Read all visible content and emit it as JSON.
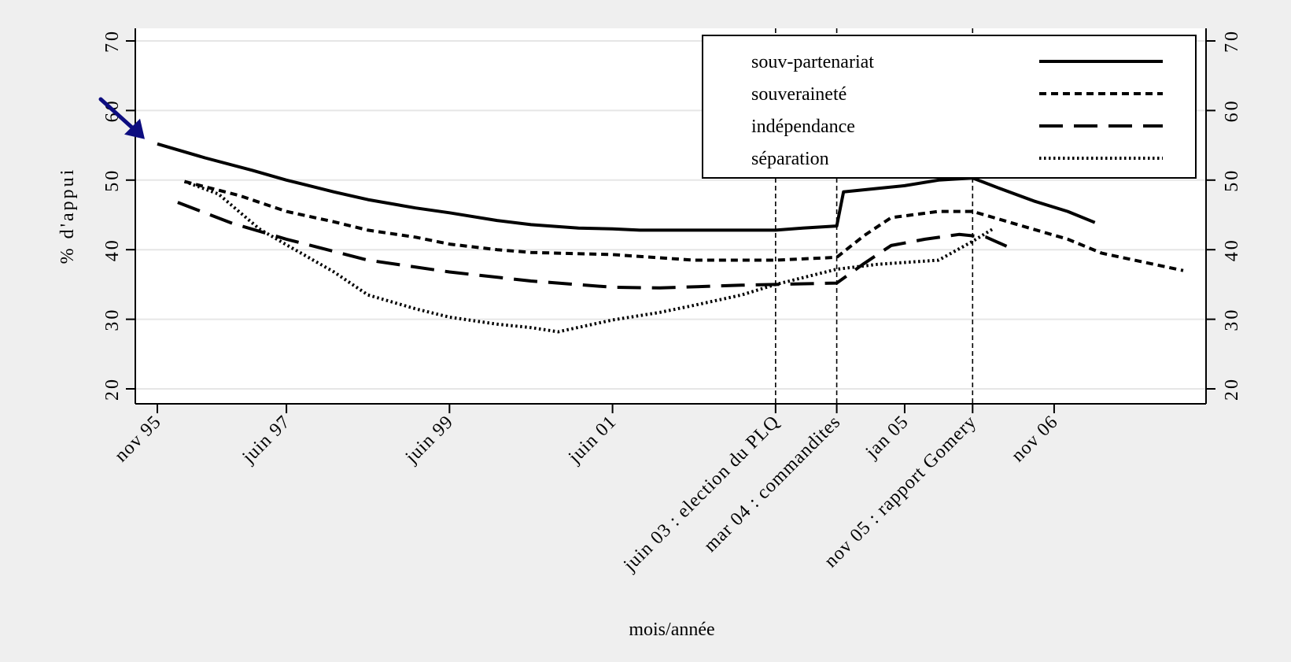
{
  "chart_data": {
    "type": "line",
    "xlabel": "mois/année",
    "ylabel": "% d'appui",
    "ylim": [
      20,
      70
    ],
    "yticks": [
      20,
      30,
      40,
      50,
      60,
      70
    ],
    "secondary_y_axis": true,
    "grid": "horizontal",
    "legend_position": "top-right",
    "x_unit": "month",
    "xlim": [
      "1995-11",
      "2008-06"
    ],
    "x_ticks": [
      {
        "x": "1995-11",
        "label": "nov 95",
        "event": false
      },
      {
        "x": "1997-06",
        "label": "juin 97",
        "event": false
      },
      {
        "x": "1999-06",
        "label": "juin 99",
        "event": false
      },
      {
        "x": "2001-06",
        "label": "juin 01",
        "event": false
      },
      {
        "x": "2003-06",
        "label": "juin 03 : election du PLQ",
        "event": true
      },
      {
        "x": "2004-03",
        "label": "mar 04 : commandites",
        "event": true
      },
      {
        "x": "2005-01",
        "label": "jan 05",
        "event": false
      },
      {
        "x": "2005-11",
        "label": "nov 05 : rapport Gomery",
        "event": true
      },
      {
        "x": "2006-11",
        "label": "nov 06",
        "event": false
      }
    ],
    "annotation_arrow": {
      "points_to": {
        "x": "1995-11",
        "y": 56
      },
      "color": "#0d0d80"
    },
    "series": [
      {
        "name": "souv-partenariat",
        "style": "solid",
        "points": [
          [
            "1995-11",
            55.2
          ],
          [
            "1996-06",
            53.2
          ],
          [
            "1997-01",
            51.4
          ],
          [
            "1997-06",
            50.0
          ],
          [
            "1998-01",
            48.3
          ],
          [
            "1998-06",
            47.2
          ],
          [
            "1999-01",
            46.0
          ],
          [
            "1999-06",
            45.3
          ],
          [
            "2000-01",
            44.2
          ],
          [
            "2000-06",
            43.6
          ],
          [
            "2001-01",
            43.1
          ],
          [
            "2001-06",
            43.0
          ],
          [
            "2001-10",
            42.8
          ],
          [
            "2002-06",
            42.8
          ],
          [
            "2003-06",
            42.8
          ],
          [
            "2003-10",
            43.1
          ],
          [
            "2004-03",
            43.4
          ],
          [
            "2004-04",
            48.3
          ],
          [
            "2004-09",
            48.8
          ],
          [
            "2005-01",
            49.2
          ],
          [
            "2005-06",
            50.0
          ],
          [
            "2005-11",
            50.3
          ],
          [
            "2006-03",
            48.8
          ],
          [
            "2006-08",
            47.0
          ],
          [
            "2007-01",
            45.5
          ],
          [
            "2007-05",
            43.9
          ]
        ]
      },
      {
        "name": "souveraineté",
        "style": "short-dash",
        "points": [
          [
            "1996-03",
            49.8
          ],
          [
            "1996-11",
            47.8
          ],
          [
            "1997-06",
            45.5
          ],
          [
            "1998-01",
            44.0
          ],
          [
            "1998-06",
            42.8
          ],
          [
            "1999-01",
            41.8
          ],
          [
            "1999-06",
            40.8
          ],
          [
            "2000-01",
            40.0
          ],
          [
            "2000-06",
            39.6
          ],
          [
            "2001-06",
            39.3
          ],
          [
            "2002-06",
            38.5
          ],
          [
            "2003-06",
            38.5
          ],
          [
            "2004-03",
            38.9
          ],
          [
            "2004-07",
            42.0
          ],
          [
            "2004-11",
            44.6
          ],
          [
            "2005-06",
            45.5
          ],
          [
            "2005-11",
            45.5
          ],
          [
            "2006-06",
            43.5
          ],
          [
            "2007-01",
            41.5
          ],
          [
            "2007-06",
            39.5
          ],
          [
            "2008-06",
            37.0
          ]
        ]
      },
      {
        "name": "indépendance",
        "style": "long-dash",
        "points": [
          [
            "1996-02",
            46.8
          ],
          [
            "1996-10",
            43.8
          ],
          [
            "1997-06",
            41.5
          ],
          [
            "1998-06",
            38.5
          ],
          [
            "1999-06",
            36.8
          ],
          [
            "2000-06",
            35.5
          ],
          [
            "2001-06",
            34.6
          ],
          [
            "2002-01",
            34.5
          ],
          [
            "2003-01",
            34.9
          ],
          [
            "2004-03",
            35.2
          ],
          [
            "2004-07",
            38.0
          ],
          [
            "2004-11",
            40.6
          ],
          [
            "2005-04",
            41.5
          ],
          [
            "2005-09",
            42.2
          ],
          [
            "2006-01",
            41.8
          ],
          [
            "2006-04",
            40.5
          ]
        ]
      },
      {
        "name": "séparation",
        "style": "dotted",
        "points": [
          [
            "1996-03",
            49.8
          ],
          [
            "1996-08",
            48.0
          ],
          [
            "1997-02",
            43.0
          ],
          [
            "1997-06",
            40.7
          ],
          [
            "1998-01",
            36.8
          ],
          [
            "1998-06",
            33.5
          ],
          [
            "1999-01",
            31.5
          ],
          [
            "1999-06",
            30.3
          ],
          [
            "2000-01",
            29.3
          ],
          [
            "2000-06",
            28.8
          ],
          [
            "2000-10",
            28.2
          ],
          [
            "2001-06",
            29.9
          ],
          [
            "2002-01",
            31.0
          ],
          [
            "2002-06",
            32.0
          ],
          [
            "2003-01",
            33.5
          ],
          [
            "2003-06",
            35.0
          ],
          [
            "2004-03",
            37.2
          ],
          [
            "2004-09",
            37.9
          ],
          [
            "2005-06",
            38.5
          ],
          [
            "2005-11",
            41.2
          ],
          [
            "2006-02",
            43.0
          ]
        ]
      }
    ]
  }
}
